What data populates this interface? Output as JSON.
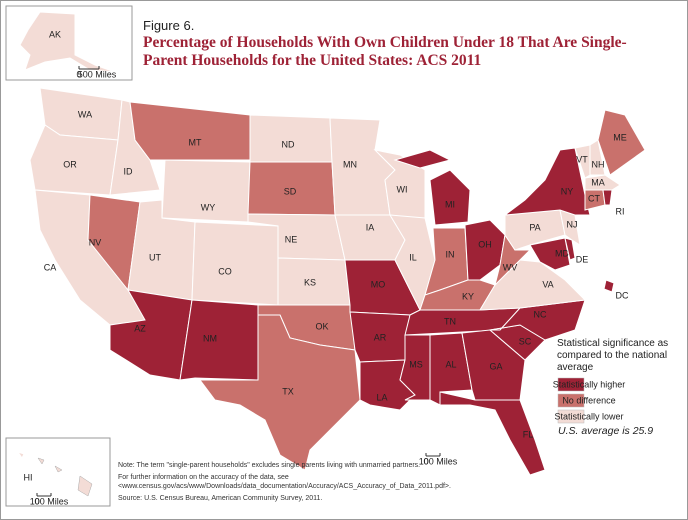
{
  "figure": "Figure 6.",
  "title": "Percentage of Households With Own Children Under 18 That Are Single-Parent Households for the United States: ACS 2011",
  "legend": {
    "title": "Statistical significance as compared to the national average",
    "items": [
      {
        "label": "Statistically higher",
        "color": "#9e2236"
      },
      {
        "label": "No difference",
        "color": "#c9716c"
      },
      {
        "label": "Statistically lower",
        "color": "#f3dcd6"
      }
    ]
  },
  "average_note": "U.S. average is 25.9",
  "scale": {
    "zero": "0",
    "main": "100 Miles",
    "alaska": "500 Miles",
    "hawaii": "100 Miles"
  },
  "notes": [
    "Note: The term \"single-parent households\" excludes single parents living with unmarried partners.",
    "For further information on the accuracy of the data, see <www.census.gov/acs/www/Downloads/data_documentation/Accuracy/ACS_Accuracy_of_Data_2011.pdf>.",
    "Source: U.S. Census Bureau, American Community Survey, 2011."
  ],
  "states": [
    {
      "label": "WA",
      "category": "Statistically lower"
    },
    {
      "label": "OR",
      "category": "Statistically lower"
    },
    {
      "label": "CA",
      "category": "Statistically lower"
    },
    {
      "label": "NV",
      "category": "No difference"
    },
    {
      "label": "ID",
      "category": "Statistically lower"
    },
    {
      "label": "MT",
      "category": "No difference"
    },
    {
      "label": "WY",
      "category": "Statistically lower"
    },
    {
      "label": "UT",
      "category": "Statistically lower"
    },
    {
      "label": "CO",
      "category": "Statistically lower"
    },
    {
      "label": "AZ",
      "category": "Statistically higher"
    },
    {
      "label": "NM",
      "category": "Statistically higher"
    },
    {
      "label": "ND",
      "category": "Statistically lower"
    },
    {
      "label": "SD",
      "category": "No difference"
    },
    {
      "label": "NE",
      "category": "Statistically lower"
    },
    {
      "label": "KS",
      "category": "Statistically lower"
    },
    {
      "label": "OK",
      "category": "No difference"
    },
    {
      "label": "TX",
      "category": "No difference"
    },
    {
      "label": "MN",
      "category": "Statistically lower"
    },
    {
      "label": "IA",
      "category": "Statistically lower"
    },
    {
      "label": "MO",
      "category": "Statistically higher"
    },
    {
      "label": "AR",
      "category": "Statistically higher"
    },
    {
      "label": "LA",
      "category": "Statistically higher"
    },
    {
      "label": "WI",
      "category": "Statistically lower"
    },
    {
      "label": "IL",
      "category": "Statistically lower"
    },
    {
      "label": "MI",
      "category": "Statistically higher"
    },
    {
      "label": "IN",
      "category": "No difference"
    },
    {
      "label": "OH",
      "category": "Statistically higher"
    },
    {
      "label": "KY",
      "category": "No difference"
    },
    {
      "label": "TN",
      "category": "Statistically higher"
    },
    {
      "label": "MS",
      "category": "Statistically higher"
    },
    {
      "label": "AL",
      "category": "Statistically higher"
    },
    {
      "label": "GA",
      "category": "Statistically higher"
    },
    {
      "label": "FL",
      "category": "Statistically higher"
    },
    {
      "label": "SC",
      "category": "Statistically higher"
    },
    {
      "label": "NC",
      "category": "Statistically higher"
    },
    {
      "label": "VA",
      "category": "Statistically lower"
    },
    {
      "label": "WV",
      "category": "No difference"
    },
    {
      "label": "PA",
      "category": "Statistically lower"
    },
    {
      "label": "MD",
      "category": "Statistically higher"
    },
    {
      "label": "DE",
      "category": "Statistically higher"
    },
    {
      "label": "NJ",
      "category": "Statistically lower"
    },
    {
      "label": "NY",
      "category": "Statistically higher"
    },
    {
      "label": "VT",
      "category": "Statistically lower"
    },
    {
      "label": "NH",
      "category": "Statistically lower"
    },
    {
      "label": "ME",
      "category": "No difference"
    },
    {
      "label": "MA",
      "category": "Statistically lower"
    },
    {
      "label": "CT",
      "category": "No difference"
    },
    {
      "label": "RI",
      "category": "Statistically higher"
    },
    {
      "label": "DC",
      "category": "Statistically higher"
    },
    {
      "label": "AK",
      "category": "Statistically lower"
    },
    {
      "label": "HI",
      "category": "Statistically lower"
    }
  ]
}
